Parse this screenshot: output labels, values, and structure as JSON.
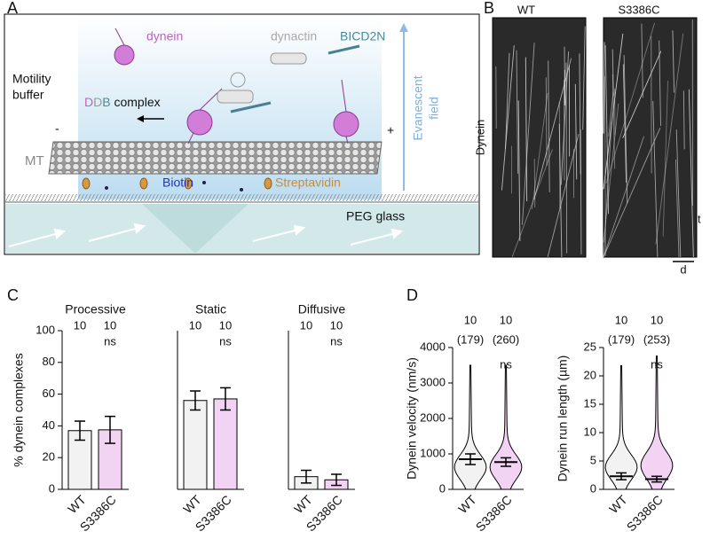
{
  "panel_labels": [
    "A",
    "B",
    "C",
    "D"
  ],
  "diagram": {
    "dynein": "dynein",
    "dynactin": "dynactin",
    "bicd2n": "BICD2N",
    "buffer": [
      "Motility",
      "buffer"
    ],
    "ddb": [
      "D",
      "D",
      "B",
      " complex"
    ],
    "minus": "-",
    "plus": "+",
    "mt": "MT",
    "biotin": "Biotin",
    "streptavidin": "Streptavidin",
    "glass": "PEG glass",
    "field": [
      "Evanescent",
      "field"
    ]
  },
  "kymograph": {
    "conditions": [
      "WT",
      "S3386C"
    ],
    "ylabel": "Dynein",
    "time": "t",
    "distance": "d"
  },
  "chart_data": [
    {
      "type": "bar",
      "title": "Processive",
      "ylabel": "% dynein complexes",
      "categories": [
        "WT",
        "S3386C"
      ],
      "values": [
        37,
        37.5
      ],
      "errors": [
        6,
        8.5
      ],
      "colors": [
        "#f2f2f2",
        "#f3d3f3"
      ],
      "ylim": [
        0,
        100
      ],
      "yticks": [
        0,
        20,
        40,
        60,
        80,
        100
      ],
      "n_labels": [
        "10",
        "10"
      ],
      "significance": "ns"
    },
    {
      "type": "bar",
      "title": "Static",
      "categories": [
        "WT",
        "S3386C"
      ],
      "values": [
        56,
        57
      ],
      "errors": [
        6,
        7
      ],
      "colors": [
        "#f2f2f2",
        "#f3d3f3"
      ],
      "ylim": [
        0,
        100
      ],
      "n_labels": [
        "10",
        "10"
      ],
      "significance": "ns"
    },
    {
      "type": "bar",
      "title": "Diffusive",
      "categories": [
        "WT",
        "S3386C"
      ],
      "values": [
        8,
        6
      ],
      "errors": [
        4,
        3.5
      ],
      "colors": [
        "#f2f2f2",
        "#f3d3f3"
      ],
      "ylim": [
        0,
        100
      ],
      "n_labels": [
        "10",
        "10"
      ],
      "significance": "ns"
    },
    {
      "type": "violin",
      "ylabel": "Dynein velocity (nm/s)",
      "categories": [
        "WT",
        "S3386C"
      ],
      "values": [
        850,
        770
      ],
      "errors": [
        150,
        120
      ],
      "violin_max": [
        3500,
        3500
      ],
      "colors": [
        "#f2f2f2",
        "#f3d3f3"
      ],
      "ylim": [
        0,
        4000
      ],
      "yticks": [
        0,
        1000,
        2000,
        3000,
        4000
      ],
      "n_labels": [
        "10",
        "10"
      ],
      "count_labels": [
        "(179)",
        "(260)"
      ],
      "significance": "ns"
    },
    {
      "type": "violin",
      "ylabel": "Dynein run length (µm)",
      "categories": [
        "WT",
        "S3386C"
      ],
      "values": [
        2.3,
        1.8
      ],
      "errors": [
        0.6,
        0.5
      ],
      "violin_max": [
        21.8,
        23.5
      ],
      "colors": [
        "#f2f2f2",
        "#f3d3f3"
      ],
      "ylim": [
        0,
        25
      ],
      "yticks": [
        0,
        5,
        10,
        15,
        20,
        25
      ],
      "n_labels": [
        "10",
        "10"
      ],
      "count_labels": [
        "(179)",
        "(253)"
      ],
      "significance": "ns"
    }
  ]
}
